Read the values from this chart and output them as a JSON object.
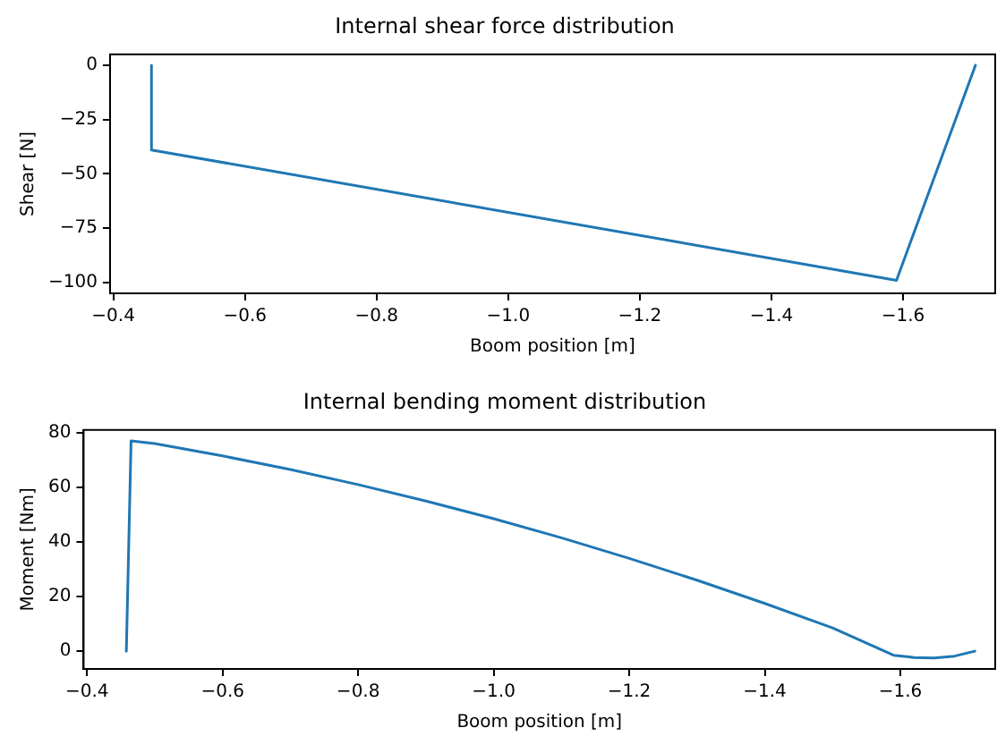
{
  "chart_data": [
    {
      "type": "line",
      "title": "Internal shear force distribution",
      "xlabel": "Boom position [m]",
      "ylabel": "Shear [N]",
      "xlim": [
        -0.395,
        -1.74
      ],
      "xticks": [
        -0.4,
        -0.6,
        -0.8,
        {
          "value": -1,
          "label": "−1.0"
        },
        -1.2,
        -1.4,
        -1.6
      ],
      "ylim": [
        -105,
        5
      ],
      "yticks": [
        0,
        -25,
        -50,
        -75,
        -100
      ],
      "grid": false,
      "legend": false,
      "marker": "none",
      "line_style": "solid",
      "series": [
        {
          "color": "#1f77b4",
          "x": [
            -0.458,
            -0.458,
            -1.59,
            -1.71
          ],
          "values": [
            0,
            -39,
            -99,
            0
          ]
        }
      ]
    },
    {
      "type": "line",
      "title": "Internal bending moment distribution",
      "xlabel": "Boom position [m]",
      "ylabel": "Moment [Nm]",
      "xlim": [
        -0.395,
        -1.74
      ],
      "xticks": [
        -0.4,
        -0.6,
        -0.8,
        {
          "value": -1,
          "label": "−1.0"
        },
        -1.2,
        -1.4,
        -1.6
      ],
      "ylim": [
        -6.5,
        81
      ],
      "yticks": [
        0,
        20,
        40,
        60,
        80
      ],
      "grid": false,
      "legend": false,
      "marker": "none",
      "line_style": "solid",
      "series": [
        {
          "color": "#1f77b4",
          "x": [
            -0.458,
            -0.465,
            -0.5,
            -0.6,
            -0.7,
            -0.8,
            -0.9,
            -1.0,
            -1.1,
            -1.2,
            -1.3,
            -1.4,
            -1.5,
            -1.59,
            -1.62,
            -1.65,
            -1.68,
            -1.71
          ],
          "values": [
            0,
            77,
            76,
            71.5,
            66.5,
            61,
            55,
            48.5,
            41.5,
            34,
            26,
            17.5,
            8.5,
            -1.5,
            -2.3,
            -2.5,
            -1.8,
            0
          ]
        }
      ]
    }
  ]
}
